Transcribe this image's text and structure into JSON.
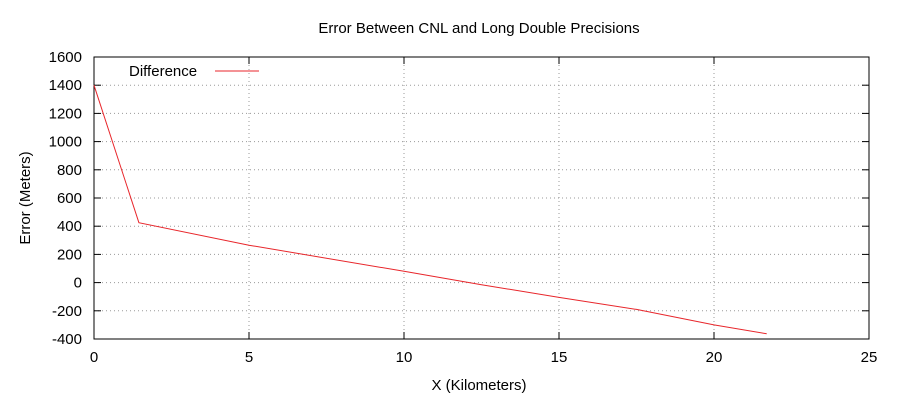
{
  "chart_data": {
    "type": "line",
    "title": "Error Between CNL and Long Double Precisions",
    "xlabel": "X (Kilometers)",
    "ylabel": "Error (Meters)",
    "xlim": [
      0,
      25
    ],
    "ylim": [
      -400,
      1600
    ],
    "xticks": [
      0,
      5,
      10,
      15,
      20,
      25
    ],
    "yticks": [
      -400,
      -200,
      0,
      200,
      400,
      600,
      800,
      1000,
      1200,
      1400,
      1600
    ],
    "grid": true,
    "legend_position": "top-left",
    "series": [
      {
        "name": "Difference",
        "color": "#e8262b",
        "x": [
          0,
          1.45,
          5,
          10,
          12.5,
          15,
          17.5,
          20,
          21.7
        ],
        "y": [
          1400,
          425,
          265,
          80,
          -15,
          -105,
          -190,
          -300,
          -363
        ]
      }
    ],
    "colors": {
      "ylabel": "#f4a5a5",
      "text": "#000000",
      "grid": "#9a9a9a"
    }
  }
}
